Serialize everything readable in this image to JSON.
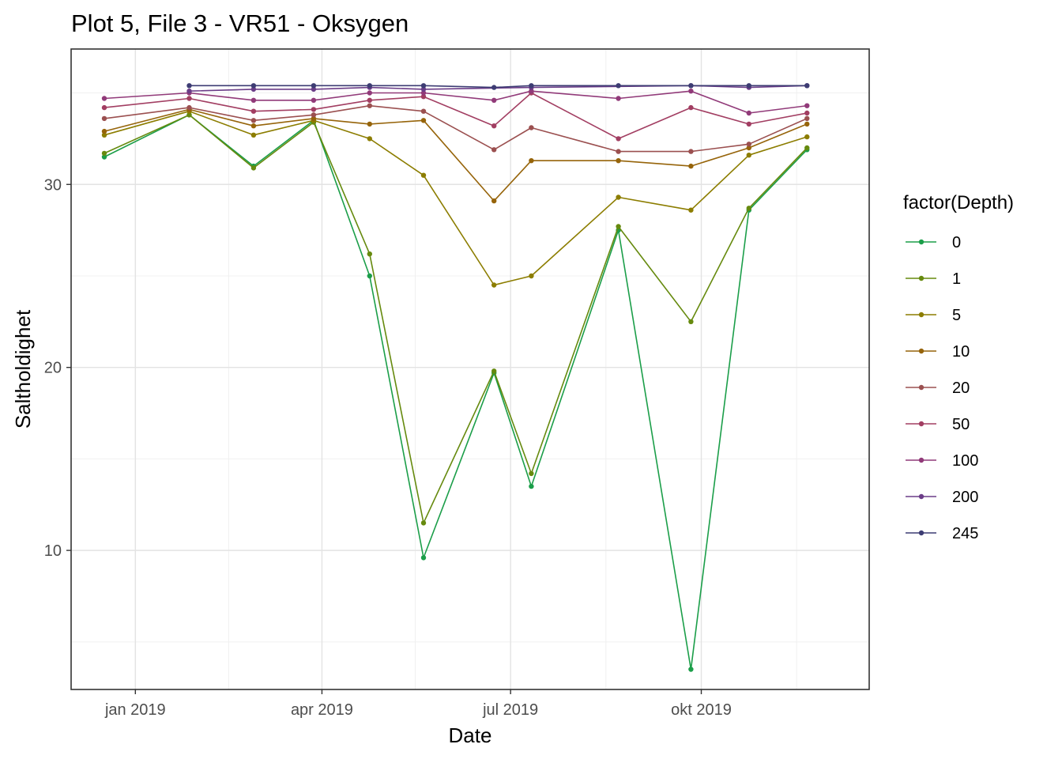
{
  "chart_data": {
    "type": "line",
    "title": "Plot 5, File 3 - VR51  -  Oksygen",
    "xlabel": "Date",
    "ylabel": "Saltholdighet",
    "legend_title": "factor(Depth)",
    "legend_position": "right",
    "grid": true,
    "x_type": "date",
    "xlim": [
      "2018-12-01",
      "2019-12-21"
    ],
    "ylim": [
      2.4,
      37.4
    ],
    "x_ticks": [
      {
        "date": "2019-01-01",
        "label": "jan 2019"
      },
      {
        "date": "2019-04-01",
        "label": "apr 2019"
      },
      {
        "date": "2019-07-01",
        "label": "jul 2019"
      },
      {
        "date": "2019-10-01",
        "label": "okt 2019"
      }
    ],
    "x_minor_ticks": [
      "2019-02-15",
      "2019-05-16",
      "2019-08-16",
      "2019-11-16"
    ],
    "y_ticks": [
      10,
      20,
      30
    ],
    "y_minor_ticks": [
      5,
      15,
      25,
      35
    ],
    "x": [
      "2018-12-17",
      "2019-01-27",
      "2019-02-27",
      "2019-03-28",
      "2019-04-24",
      "2019-05-20",
      "2019-06-23",
      "2019-07-11",
      "2019-08-22",
      "2019-09-26",
      "2019-10-24",
      "2019-11-21"
    ],
    "series": [
      {
        "name": "0",
        "color": "#1b9e49",
        "values": [
          31.5,
          33.8,
          31.0,
          33.5,
          25.0,
          9.6,
          19.7,
          13.5,
          27.5,
          3.5,
          28.6,
          31.9
        ]
      },
      {
        "name": "1",
        "color": "#668a0e",
        "values": [
          31.7,
          33.8,
          30.9,
          33.4,
          26.2,
          11.5,
          19.8,
          14.2,
          27.7,
          22.5,
          28.7,
          32.0
        ]
      },
      {
        "name": "5",
        "color": "#8c7d00",
        "values": [
          32.7,
          34.0,
          32.7,
          33.5,
          32.5,
          30.5,
          24.5,
          25.0,
          29.3,
          28.6,
          31.6,
          32.6
        ]
      },
      {
        "name": "10",
        "color": "#96640a",
        "values": [
          32.9,
          34.1,
          33.2,
          33.6,
          33.3,
          33.5,
          29.1,
          31.3,
          31.3,
          31.0,
          32.0,
          33.3
        ]
      },
      {
        "name": "20",
        "color": "#9b5050",
        "values": [
          33.6,
          34.2,
          33.5,
          33.8,
          34.3,
          34.0,
          31.9,
          33.1,
          31.8,
          31.8,
          32.2,
          33.6
        ]
      },
      {
        "name": "50",
        "color": "#a23e62",
        "values": [
          34.2,
          34.7,
          34.0,
          34.1,
          34.6,
          34.8,
          33.2,
          35.0,
          32.5,
          34.2,
          33.3,
          33.9
        ]
      },
      {
        "name": "100",
        "color": "#913a79",
        "values": [
          34.7,
          35.0,
          34.6,
          34.6,
          35.0,
          35.0,
          34.6,
          35.1,
          34.7,
          35.1,
          33.9,
          34.3
        ]
      },
      {
        "name": "200",
        "color": "#6b3d88",
        "values": [
          null,
          35.1,
          35.2,
          35.2,
          35.3,
          35.2,
          null,
          35.3,
          null,
          35.4,
          35.3,
          35.4
        ]
      },
      {
        "name": "245",
        "color": "#3d3c73",
        "values": [
          null,
          35.4,
          35.4,
          35.4,
          35.4,
          35.4,
          35.3,
          35.4,
          35.4,
          35.4,
          35.4,
          35.4
        ]
      }
    ]
  }
}
